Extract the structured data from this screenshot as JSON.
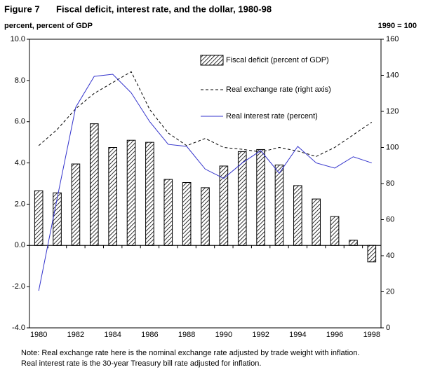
{
  "chart_data": {
    "type": "bar_line",
    "figure_label": "Figure 7",
    "title": "Fiscal deficit, interest rate, and the dollar, 1980-98",
    "y_label": "percent, percent of GDP",
    "y2_label": "1990 = 100",
    "notes": [
      "Note: Real exchange rate here is the nominal exchange rate adjusted by trade weight with inflation.",
      "Real interest rate is the 30-year Treasury bill rate adjusted for inflation."
    ],
    "categories": [
      "1980",
      null,
      "1982",
      null,
      "1984",
      null,
      "1986",
      null,
      "1988",
      null,
      "1990",
      null,
      "1992",
      null,
      "1994",
      null,
      "1996",
      null,
      "1998"
    ],
    "series": [
      {
        "name": "Fiscal deficit (percent of GDP)",
        "kind": "bar",
        "pattern": "hatch",
        "color": "#000000",
        "values": [
          2.65,
          2.55,
          3.95,
          5.9,
          4.75,
          5.1,
          5.0,
          3.2,
          3.05,
          2.8,
          3.85,
          4.55,
          4.65,
          3.9,
          2.9,
          2.25,
          1.4,
          0.25,
          -0.8
        ]
      },
      {
        "name": "Real exchange rate (right axis)",
        "kind": "line",
        "line_style": "dashed",
        "color": "#000000",
        "axis": "y2",
        "values": [
          101,
          110,
          121.5,
          130,
          136,
          142,
          121,
          108,
          101,
          105,
          100,
          99,
          97.5,
          100,
          98,
          95,
          100,
          107,
          114
        ]
      },
      {
        "name": "Real interest rate (percent)",
        "kind": "line",
        "line_style": "solid",
        "color": "#3333cc",
        "values": [
          -2.2,
          2.3,
          6.7,
          8.2,
          8.3,
          7.4,
          6.0,
          4.9,
          4.8,
          3.7,
          3.25,
          4.0,
          4.6,
          3.5,
          4.8,
          4.0,
          3.75,
          4.3,
          4.0
        ]
      }
    ],
    "ylim": [
      -4,
      10
    ],
    "yticks": [
      {
        "value": -4,
        "label": "-4.0"
      },
      {
        "value": -2,
        "label": "-2.0"
      },
      {
        "value": 0,
        "label": "0.0"
      },
      {
        "value": 2,
        "label": "2.0"
      },
      {
        "value": 4,
        "label": "4.0"
      },
      {
        "value": 6,
        "label": "6.0"
      },
      {
        "value": 8,
        "label": "8.0"
      },
      {
        "value": 10,
        "label": "10.0"
      }
    ],
    "y2lim": [
      0,
      160
    ],
    "y2ticks": [
      0,
      20,
      40,
      60,
      80,
      100,
      120,
      140,
      160
    ]
  }
}
